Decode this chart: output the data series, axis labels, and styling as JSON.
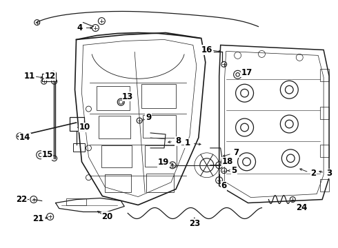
{
  "background_color": "#ffffff",
  "line_color": "#1a1a1a",
  "font_size": 8.5,
  "figsize": [
    4.9,
    3.6
  ],
  "dpi": 100
}
